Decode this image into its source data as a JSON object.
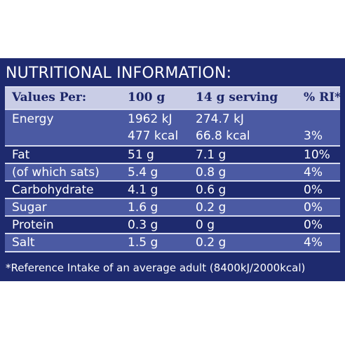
{
  "title": "NUTRITIONAL INFORMATION:",
  "header": {
    "col1": "Values Per:",
    "col2": "100 g",
    "col3": "14 g serving",
    "col4": "% RI*"
  },
  "rows": [
    {
      "name": "Energy",
      "per100_kj": "1962 kJ",
      "serving_kj": "274.7 kJ",
      "per100_kcal": "477 kcal",
      "serving_kcal": "66.8 kcal",
      "ri": "3%"
    },
    {
      "name": "Fat",
      "per100": "51 g",
      "serving": "7.1 g",
      "ri": "10%"
    },
    {
      "name": "(of which sats)",
      "per100": "5.4 g",
      "serving": "0.8 g",
      "ri": "4%"
    },
    {
      "name": "Carbohydrate",
      "per100": "4.1 g",
      "serving": "0.6 g",
      "ri": "0%"
    },
    {
      "name": "Sugar",
      "per100": "1.6 g",
      "serving": "0.2 g",
      "ri": "0%"
    },
    {
      "name": "Protein",
      "per100": "0.3 g",
      "serving": "0 g",
      "ri": "0%"
    },
    {
      "name": "Salt",
      "per100": "1.5 g",
      "serving": "0.2 g",
      "ri": "4%"
    }
  ],
  "footnote": "*Reference Intake of an average adult (8400kJ/2000kcal)",
  "colors": {
    "panel": "#1e2a6e",
    "band": "#4b5aa3",
    "header": "#c9cde6"
  }
}
